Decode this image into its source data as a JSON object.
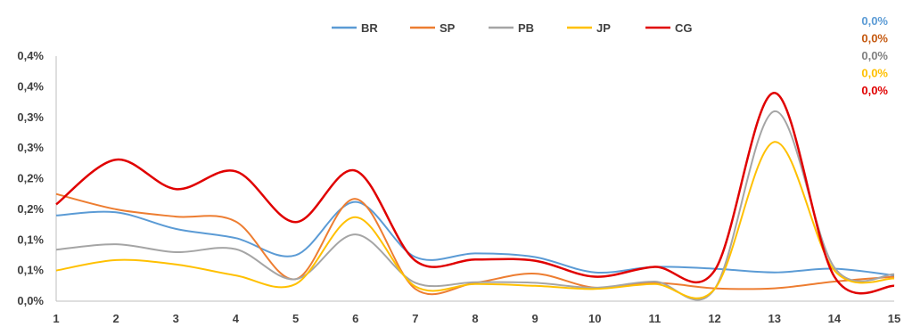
{
  "chart_data": {
    "type": "line",
    "title": "",
    "xlabel": "",
    "ylabel": "",
    "x": [
      1,
      2,
      3,
      4,
      5,
      6,
      7,
      8,
      9,
      10,
      11,
      12,
      13,
      14,
      15
    ],
    "ylim": [
      0,
      0.4
    ],
    "y_tick_values": [
      0,
      0.05,
      0.1,
      0.15,
      0.2,
      0.25,
      0.3,
      0.35,
      0.4
    ],
    "y_tick_labels": [
      "0,0%",
      "0,1%",
      "0,1%",
      "0,2%",
      "0,2%",
      "0,3%",
      "0,3%",
      "0,4%",
      "0,4%"
    ],
    "x_tick_labels": [
      "1",
      "2",
      "3",
      "4",
      "5",
      "6",
      "7",
      "8",
      "9",
      "10",
      "11",
      "12",
      "13",
      "14",
      "15"
    ],
    "grid": false,
    "legend_position": "top-center",
    "series": [
      {
        "name": "BR",
        "color": "#5B9BD5",
        "values": [
          0.14,
          0.145,
          0.118,
          0.103,
          0.075,
          0.162,
          0.072,
          0.078,
          0.072,
          0.047,
          0.056,
          0.053,
          0.047,
          0.053,
          0.042
        ]
      },
      {
        "name": "SP",
        "color": "#ED7D31",
        "values": [
          0.175,
          0.15,
          0.138,
          0.13,
          0.036,
          0.167,
          0.02,
          0.03,
          0.045,
          0.022,
          0.03,
          0.021,
          0.021,
          0.032,
          0.04
        ]
      },
      {
        "name": "PB",
        "color": "#A5A5A5",
        "values": [
          0.084,
          0.093,
          0.08,
          0.085,
          0.036,
          0.109,
          0.03,
          0.031,
          0.03,
          0.022,
          0.032,
          0.02,
          0.31,
          0.055,
          0.044
        ]
      },
      {
        "name": "JP",
        "color": "#FFC000",
        "values": [
          0.05,
          0.067,
          0.06,
          0.042,
          0.028,
          0.137,
          0.024,
          0.028,
          0.025,
          0.02,
          0.028,
          0.02,
          0.26,
          0.05,
          0.037
        ]
      },
      {
        "name": "CG",
        "color": "#E00000",
        "values": [
          0.158,
          0.231,
          0.183,
          0.212,
          0.129,
          0.213,
          0.066,
          0.068,
          0.066,
          0.04,
          0.056,
          0.05,
          0.34,
          0.04,
          0.025
        ]
      }
    ],
    "annotations": [
      {
        "text": "0,0%",
        "color": "#5B9BD5"
      },
      {
        "text": "0,0%",
        "color": "#C55A11"
      },
      {
        "text": "0,0%",
        "color": "#808080"
      },
      {
        "text": "0,0%",
        "color": "#FFC000"
      },
      {
        "text": "0,0%",
        "color": "#E00000"
      }
    ]
  }
}
